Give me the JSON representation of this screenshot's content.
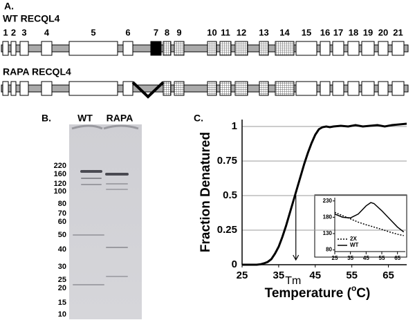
{
  "panel_a": {
    "label": "A.",
    "wt_title": "WT RECQL4",
    "rapa_title": "RAPA  RECQL4",
    "exon_numbers": [
      "1",
      "2",
      "3",
      "4",
      "5",
      "6",
      "7",
      "8",
      "9",
      "10",
      "11",
      "12",
      "13",
      "14",
      "15",
      "16",
      "17",
      "18",
      "19",
      "20",
      "21"
    ]
  },
  "panel_b": {
    "label": "B.",
    "lanes": [
      "WT",
      "RAPA"
    ],
    "markers": [
      "220",
      "160",
      "120",
      "100",
      "80",
      "70",
      "60",
      "50",
      "40",
      "30",
      "25",
      "20",
      "15",
      "10"
    ]
  },
  "panel_c_label": "C.",
  "chart_data": [
    {
      "type": "line",
      "ylabel": "Fraction Denatured",
      "xlabel": {
        "text": "Temperature (",
        "sup": "o",
        "end": "C)"
      },
      "x": [
        25,
        26,
        27,
        28,
        29,
        30,
        31,
        32,
        33,
        34,
        35,
        36,
        37,
        38,
        39,
        40,
        41,
        42,
        43,
        44,
        45,
        46,
        47,
        48,
        49,
        50,
        52,
        54,
        56,
        58,
        60,
        62,
        64,
        66,
        68,
        70
      ],
      "values": [
        0,
        0,
        0,
        0,
        0,
        0.003,
        0.01,
        0.02,
        0.04,
        0.08,
        0.13,
        0.2,
        0.28,
        0.37,
        0.46,
        0.55,
        0.64,
        0.73,
        0.81,
        0.88,
        0.94,
        0.98,
        0.995,
        1.0,
        0.995,
        1.0,
        1.005,
        1.0,
        1.01,
        1.0,
        1.005,
        1.01,
        1.0,
        1.01,
        1.015,
        1.02
      ],
      "color": "#000000",
      "xlim": [
        25,
        70
      ],
      "ylim": [
        0,
        1.05
      ],
      "xticks": [
        25,
        35,
        45,
        55,
        65
      ],
      "yticks": [
        0,
        0.25,
        0.5,
        0.75,
        1
      ],
      "grid": true,
      "annotations": [
        {
          "text": "Tm",
          "x": 39.7,
          "y": 0.5
        }
      ]
    },
    {
      "type": "line",
      "x": [
        25,
        30,
        35,
        40,
        45,
        48,
        50,
        55,
        60,
        65,
        69
      ],
      "series": [
        {
          "name": "2X",
          "color": "#000000",
          "line_style": "dotted",
          "values": [
            195,
            185,
            175,
            165,
            157,
            153,
            150,
            143,
            135,
            128,
            124
          ]
        },
        {
          "name": "WT",
          "color": "#000000",
          "line_style": "solid",
          "values": [
            190,
            180,
            178,
            190,
            215,
            225,
            222,
            200,
            175,
            150,
            135
          ]
        }
      ],
      "xlim": [
        25,
        70
      ],
      "ylim": [
        75,
        240
      ],
      "xticks": [
        25,
        35,
        45,
        55,
        65
      ],
      "yticks": [
        80,
        130,
        180,
        230
      ],
      "legend": "lower left"
    }
  ]
}
